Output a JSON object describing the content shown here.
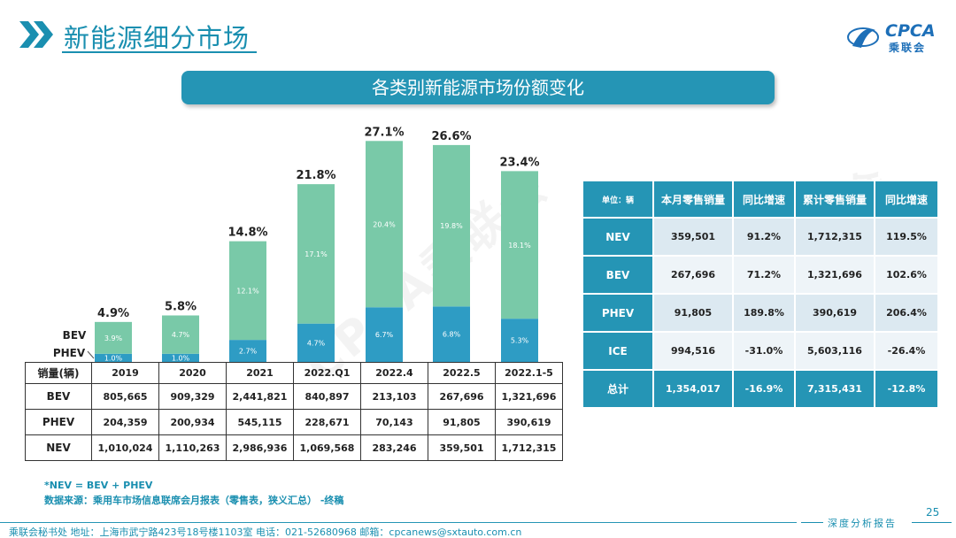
{
  "header": {
    "title": "新能源细分市场"
  },
  "logo": {
    "text": "CPCA",
    "cn": "乘联会"
  },
  "banner": {
    "title": "各类别新能源市场份额变化"
  },
  "chart_data": {
    "type": "bar",
    "stacked": true,
    "categories": [
      "2019",
      "2020",
      "2021",
      "2022.Q1",
      "2022.4",
      "2022.5",
      "2022.1-5"
    ],
    "series": [
      {
        "name": "PHEV",
        "values": [
          1.0,
          1.0,
          2.7,
          4.7,
          6.7,
          6.8,
          5.3
        ],
        "labels": [
          "1.0%",
          "1.0%",
          "2.7%",
          "4.7%",
          "6.7%",
          "6.8%",
          "5.3%"
        ],
        "color": "#2e9cc4"
      },
      {
        "name": "BEV",
        "values": [
          3.9,
          4.7,
          12.1,
          17.1,
          20.4,
          19.8,
          18.1
        ],
        "labels": [
          "3.9%",
          "4.7%",
          "12.1%",
          "17.1%",
          "20.4%",
          "19.8%",
          "18.1%"
        ],
        "color": "#79c9a8"
      }
    ],
    "totals": [
      "4.9%",
      "5.8%",
      "14.8%",
      "21.8%",
      "27.1%",
      "26.6%",
      "23.4%"
    ],
    "total_values": [
      4.9,
      5.8,
      14.8,
      21.8,
      27.1,
      26.6,
      23.4
    ],
    "ylim": [
      0,
      28
    ],
    "legend_labels": {
      "bev": "BEV",
      "phev": "PHEV"
    }
  },
  "left_table": {
    "header_label": "销量(辆)",
    "columns": [
      "2019",
      "2020",
      "2021",
      "2022.Q1",
      "2022.4",
      "2022.5",
      "2022.1-5"
    ],
    "rows": [
      {
        "label": "BEV",
        "values": [
          "805,665",
          "909,329",
          "2,441,821",
          "840,897",
          "213,103",
          "267,696",
          "1,321,696"
        ]
      },
      {
        "label": "PHEV",
        "values": [
          "204,359",
          "200,934",
          "545,115",
          "228,671",
          "70,143",
          "91,805",
          "390,619"
        ]
      },
      {
        "label": "NEV",
        "values": [
          "1,010,024",
          "1,110,263",
          "2,986,936",
          "1,069,568",
          "283,246",
          "359,501",
          "1,712,315"
        ]
      }
    ]
  },
  "right_table": {
    "unit_label": "单位：辆",
    "columns": [
      "本月零售销量",
      "同比增速",
      "累计零售销量",
      "同比增速"
    ],
    "rows": [
      {
        "label": "NEV",
        "values": [
          "359,501",
          "91.2%",
          "1,712,315",
          "119.5%"
        ]
      },
      {
        "label": "BEV",
        "values": [
          "267,696",
          "71.2%",
          "1,321,696",
          "102.6%"
        ]
      },
      {
        "label": "PHEV",
        "values": [
          "91,805",
          "189.8%",
          "390,619",
          "206.4%"
        ]
      },
      {
        "label": "ICE",
        "values": [
          "994,516",
          "-31.0%",
          "5,603,116",
          "-26.4%"
        ]
      },
      {
        "label": "总计",
        "values": [
          "1,354,017",
          "-16.9%",
          "7,315,431",
          "-12.8%"
        ]
      }
    ]
  },
  "notes": {
    "nev_def": "*NEV = BEV + PHEV",
    "source": "数据来源：乘用车市场信息联席会月报表（零售表，狭义汇总） -终稿"
  },
  "footer": {
    "text": "乘联会秘书处   地址：上海市武宁路423号18号楼1103室  电话：021-52680968   邮箱：cpcanews@sxtauto.com.cn",
    "tagline": "深度分析报告",
    "page": "25"
  },
  "watermark": "CPCA乘联会",
  "colors": {
    "accent": "#2595b5",
    "bev": "#79c9a8",
    "phev": "#2e9cc4"
  }
}
